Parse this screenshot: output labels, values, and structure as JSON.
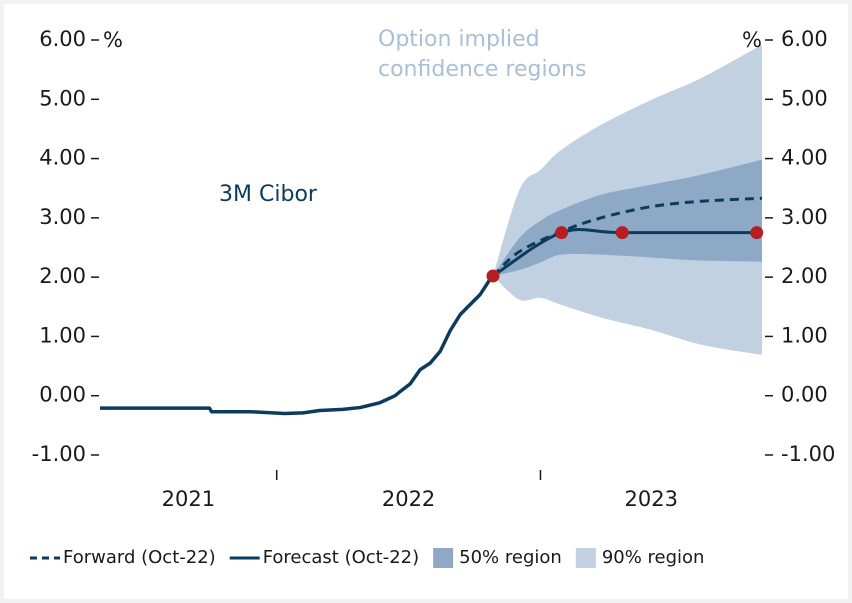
{
  "chart_data": {
    "type": "line",
    "y_unit": "%",
    "y2_unit": "%",
    "ylim": [
      -1,
      6
    ],
    "y2lim": [
      -1,
      6
    ],
    "yticks": [
      {
        "value": 6,
        "label": "6.00"
      },
      {
        "value": 5,
        "label": "5.00"
      },
      {
        "value": 4,
        "label": "4.00"
      },
      {
        "value": 3,
        "label": "3.00"
      },
      {
        "value": 2,
        "label": "2.00"
      },
      {
        "value": 1,
        "label": "1.00"
      },
      {
        "value": 0,
        "label": "0.00"
      },
      {
        "value": -1,
        "label": "-1.00"
      }
    ],
    "y2ticks": [
      {
        "value": 6,
        "label": "6.00"
      },
      {
        "value": 5,
        "label": "5.00"
      },
      {
        "value": 4,
        "label": "4.00"
      },
      {
        "value": 3,
        "label": "3.00"
      },
      {
        "value": 2,
        "label": "2.00"
      },
      {
        "value": 1,
        "label": "1.00"
      },
      {
        "value": 0,
        "label": "0.00"
      },
      {
        "value": -1,
        "label": "-1.00"
      }
    ],
    "xlim": [
      2021.33,
      2023.84
    ],
    "xticks": [
      2022,
      2023
    ],
    "year_labels": [
      "2021",
      "2022",
      "2023"
    ],
    "annotations": [
      {
        "text": "3M Cibor",
        "color": "#0d3b5e"
      },
      {
        "lines": [
          "Option implied",
          "confidence regions"
        ],
        "color": "#a9bfd7"
      }
    ],
    "history": {
      "color": "#0d3b5e",
      "x": [
        2021.33,
        2021.5,
        2021.65,
        2021.745,
        2021.753,
        2021.9,
        2022.03,
        2022.1,
        2022.163,
        2022.25,
        2022.316,
        2022.39,
        2022.449,
        2022.468,
        2022.506,
        2022.544,
        2022.582,
        2022.62,
        2022.658,
        2022.696,
        2022.734,
        2022.772,
        2022.817
      ],
      "values": [
        -0.21,
        -0.21,
        -0.21,
        -0.21,
        -0.27,
        -0.27,
        -0.3,
        -0.29,
        -0.25,
        -0.23,
        -0.2,
        -0.12,
        0.0,
        0.07,
        0.2,
        0.44,
        0.55,
        0.75,
        1.1,
        1.37,
        1.54,
        1.71,
        2.02
      ]
    },
    "series": [
      {
        "name": "Forward (Oct-22)",
        "color": "#0d3b5e",
        "dashed": true,
        "x": [
          2022.82,
          2022.92,
          2023.08,
          2023.23,
          2023.42,
          2023.61,
          2023.84
        ],
        "values": [
          2.02,
          2.43,
          2.77,
          3.0,
          3.19,
          3.28,
          3.33
        ]
      },
      {
        "name": "Forecast (Oct-22)",
        "color": "#0d3b5e",
        "markers": true,
        "marker_color": "#b51e23",
        "x": [
          2022.82,
          2023.08,
          2023.31,
          2023.82
        ],
        "values": [
          2.02,
          2.75,
          2.75,
          2.75
        ]
      }
    ],
    "bands": [
      {
        "name": "90% region",
        "color": "#c1d1e1",
        "x": [
          2022.82,
          2022.92,
          2023.0,
          2023.08,
          2023.23,
          2023.42,
          2023.61,
          2023.84
        ],
        "upper": [
          2.02,
          3.47,
          3.81,
          4.15,
          4.57,
          4.99,
          5.36,
          5.92
        ],
        "lower": [
          2.02,
          1.62,
          1.65,
          1.53,
          1.32,
          1.11,
          0.86,
          0.69
        ]
      },
      {
        "name": "50% region",
        "color": "#8ea9c6",
        "x": [
          2022.82,
          2022.92,
          2023.0,
          2023.08,
          2023.23,
          2023.42,
          2023.61,
          2023.84
        ],
        "upper": [
          2.02,
          2.66,
          2.95,
          3.14,
          3.39,
          3.56,
          3.73,
          3.98
        ],
        "lower": [
          2.02,
          2.12,
          2.25,
          2.38,
          2.38,
          2.33,
          2.28,
          2.26
        ]
      }
    ],
    "legend_order": [
      "series.0",
      "series.1",
      "bands.1",
      "bands.0"
    ]
  }
}
